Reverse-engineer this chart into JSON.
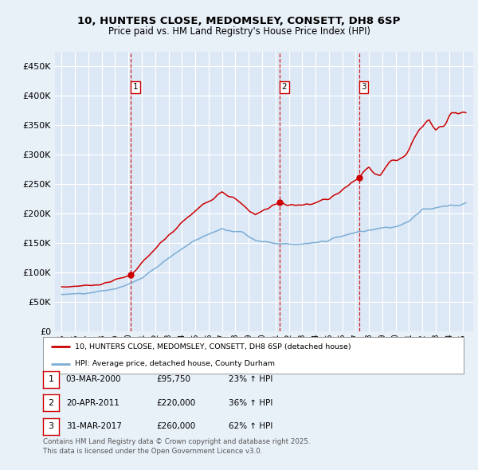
{
  "title_line1": "10, HUNTERS CLOSE, MEDOMSLEY, CONSETT, DH8 6SP",
  "title_line2": "Price paid vs. HM Land Registry's House Price Index (HPI)",
  "legend_label_red": "10, HUNTERS CLOSE, MEDOMSLEY, CONSETT, DH8 6SP (detached house)",
  "legend_label_blue": "HPI: Average price, detached house, County Durham",
  "transactions": [
    {
      "label": "1",
      "date": "03-MAR-2000",
      "price": 95750,
      "pct": "23%",
      "direction": "↑",
      "x_year": 2000.17
    },
    {
      "label": "2",
      "date": "20-APR-2011",
      "price": 220000,
      "pct": "36%",
      "direction": "↑",
      "x_year": 2011.3
    },
    {
      "label": "3",
      "date": "31-MAR-2017",
      "price": 260000,
      "pct": "62%",
      "direction": "↑",
      "x_year": 2017.25
    }
  ],
  "footnote": "Contains HM Land Registry data © Crown copyright and database right 2025.\nThis data is licensed under the Open Government Licence v3.0.",
  "background_color": "#e8f0f8",
  "plot_bg_color": "#dce8f5",
  "red_color": "#cc0000",
  "blue_color": "#7aadd4",
  "grid_color": "#ffffff",
  "dashed_color": "#cc0000",
  "ylim": [
    0,
    475000
  ],
  "yticks": [
    0,
    50000,
    100000,
    150000,
    200000,
    250000,
    300000,
    350000,
    400000,
    450000
  ],
  "xmin": 1994.5,
  "xmax": 2025.8
}
